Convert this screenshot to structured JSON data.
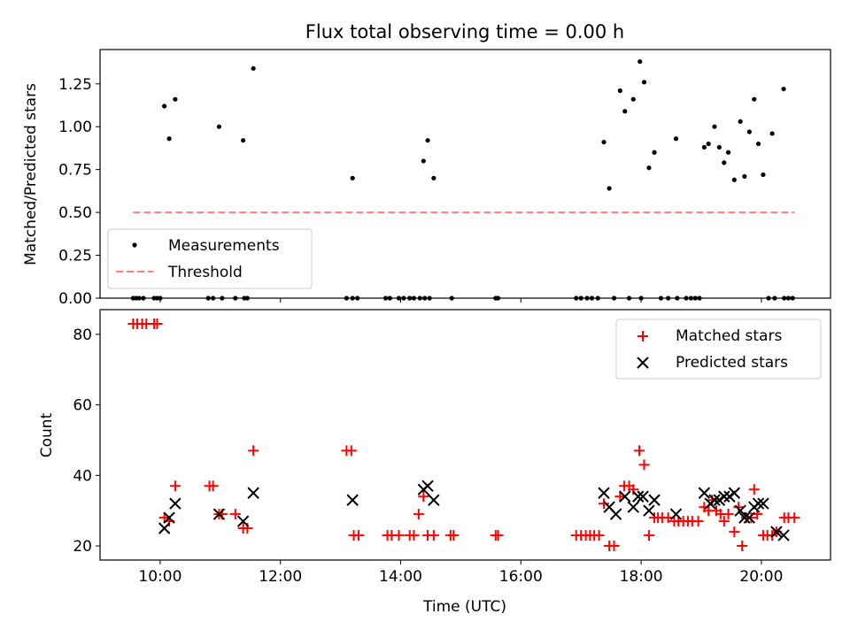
{
  "title": "Flux total observing time = 0.00 h",
  "colors": {
    "measurement": "#000000",
    "threshold": "#ff7f7f",
    "matched": "#ff0000",
    "predicted": "#000000",
    "axis": "#000000"
  },
  "chart_data": [
    {
      "type": "scatter",
      "title": "Flux total observing time = 0.00 h",
      "xlabel": "",
      "ylabel": "Matched/Predicted stars",
      "xlim": [
        9.0,
        21.15
      ],
      "ylim": [
        0.0,
        1.45
      ],
      "xticks": [
        10,
        12,
        14,
        16,
        18,
        20
      ],
      "xtick_labels": [],
      "yticks": [
        0.0,
        0.25,
        0.5,
        0.75,
        1.0,
        1.25
      ],
      "ytick_labels": [
        "0.00",
        "0.25",
        "0.50",
        "0.75",
        "1.00",
        "1.25"
      ],
      "legend_position": "lower-left",
      "series": [
        {
          "name": "Measurements",
          "marker": "dot",
          "x": [
            10.07,
            10.15,
            10.25,
            10.98,
            11.38,
            11.55,
            13.2,
            14.38,
            14.45,
            14.55,
            17.38,
            17.47,
            17.65,
            17.73,
            17.87,
            17.98,
            18.05,
            18.13,
            18.22,
            18.58,
            19.05,
            19.12,
            19.22,
            19.3,
            19.38,
            19.45,
            19.55,
            19.65,
            19.72,
            19.8,
            19.88,
            19.95,
            20.03,
            20.18,
            20.37,
            9.55,
            9.6,
            9.65,
            9.72,
            9.9,
            9.95,
            10.0,
            10.8,
            10.88,
            11.03,
            11.25,
            11.4,
            11.45,
            13.1,
            13.2,
            13.28,
            13.75,
            13.82,
            13.97,
            14.05,
            14.15,
            14.22,
            14.32,
            14.4,
            14.48,
            14.85,
            15.58,
            15.62,
            16.92,
            17.0,
            17.1,
            17.18,
            17.28,
            17.55,
            17.8,
            18.0,
            18.33,
            18.45,
            18.6,
            18.75,
            18.83,
            18.9,
            18.97,
            20.12,
            20.22,
            20.38,
            20.45,
            20.52
          ],
          "y": [
            1.12,
            0.93,
            1.16,
            1.0,
            0.92,
            1.34,
            0.7,
            0.8,
            0.92,
            0.7,
            0.91,
            0.64,
            1.21,
            1.09,
            1.16,
            1.38,
            1.26,
            0.76,
            0.85,
            0.93,
            0.88,
            0.9,
            1.0,
            0.88,
            0.79,
            0.85,
            0.69,
            1.03,
            0.71,
            0.97,
            1.16,
            0.9,
            0.72,
            0.96,
            1.22,
            0.0,
            0.0,
            0.0,
            0.0,
            0.0,
            0.0,
            0.0,
            0.0,
            0.0,
            0.0,
            0.0,
            0.0,
            0.0,
            0.0,
            0.0,
            0.0,
            0.0,
            0.0,
            0.0,
            0.0,
            0.0,
            0.0,
            0.0,
            0.0,
            0.0,
            0.0,
            0.0,
            0.0,
            0.0,
            0.0,
            0.0,
            0.0,
            0.0,
            0.0,
            0.0,
            0.0,
            0.0,
            0.0,
            0.0,
            0.0,
            0.0,
            0.0,
            0.0,
            0.0,
            0.0,
            0.0,
            0.0,
            0.0
          ]
        },
        {
          "name": "Threshold",
          "marker": "dashed-line",
          "x": [
            9.55,
            20.55
          ],
          "y": [
            0.5,
            0.5
          ]
        }
      ]
    },
    {
      "type": "scatter",
      "title": "",
      "xlabel": "Time (UTC)",
      "ylabel": "Count",
      "xlim": [
        9.0,
        21.15
      ],
      "ylim": [
        16.0,
        87.0
      ],
      "xticks": [
        10,
        12,
        14,
        16,
        18,
        20
      ],
      "xtick_labels": [
        "10:00",
        "12:00",
        "14:00",
        "16:00",
        "18:00",
        "20:00"
      ],
      "yticks": [
        20,
        40,
        60,
        80
      ],
      "ytick_labels": [
        "20",
        "40",
        "60",
        "80"
      ],
      "legend_position": "top-right",
      "series": [
        {
          "name": "Matched stars",
          "marker": "plus",
          "x": [
            9.55,
            9.62,
            9.7,
            9.77,
            9.9,
            9.95,
            10.07,
            10.15,
            10.25,
            10.82,
            10.88,
            10.98,
            11.03,
            11.25,
            11.38,
            11.45,
            11.55,
            13.1,
            13.18,
            13.22,
            13.3,
            13.78,
            13.85,
            13.97,
            14.15,
            14.22,
            14.3,
            14.38,
            14.45,
            14.55,
            14.83,
            14.88,
            15.58,
            15.62,
            16.92,
            17.0,
            17.08,
            17.15,
            17.22,
            17.3,
            17.38,
            17.47,
            17.55,
            17.65,
            17.72,
            17.8,
            17.87,
            17.97,
            18.05,
            18.13,
            18.22,
            18.28,
            18.35,
            18.45,
            18.55,
            18.62,
            18.7,
            18.78,
            18.85,
            18.95,
            19.05,
            19.12,
            19.18,
            19.25,
            19.32,
            19.38,
            19.45,
            19.55,
            19.62,
            19.68,
            19.75,
            19.83,
            19.88,
            19.93,
            20.03,
            20.1,
            20.18,
            20.25,
            20.38,
            20.45,
            20.55
          ],
          "y": [
            83,
            83,
            83,
            83,
            83,
            83,
            28,
            27,
            37,
            37,
            37,
            29,
            29,
            29,
            25,
            25,
            47,
            47,
            47,
            23,
            23,
            23,
            23,
            23,
            23,
            23,
            29,
            34,
            23,
            23,
            23,
            23,
            23,
            23,
            23,
            23,
            23,
            23,
            23,
            23,
            32,
            20,
            20,
            34,
            37,
            37,
            36,
            47,
            43,
            23,
            28,
            28,
            28,
            28,
            27,
            27,
            27,
            27,
            27,
            27,
            31,
            30,
            33,
            30,
            29,
            27,
            29,
            24,
            31,
            20,
            28,
            28,
            36,
            29,
            23,
            23,
            23,
            24,
            28,
            28,
            28
          ]
        },
        {
          "name": "Predicted stars",
          "marker": "x",
          "x": [
            10.07,
            10.15,
            10.25,
            10.98,
            11.38,
            11.55,
            13.2,
            14.38,
            14.45,
            14.55,
            17.38,
            17.47,
            17.58,
            17.73,
            17.87,
            17.95,
            18.03,
            18.13,
            18.22,
            18.58,
            19.05,
            19.15,
            19.22,
            19.3,
            19.38,
            19.47,
            19.55,
            19.65,
            19.72,
            19.8,
            19.88,
            19.95,
            20.03,
            20.25,
            20.37
          ],
          "y": [
            25,
            28,
            32,
            29,
            27,
            35,
            33,
            36,
            37,
            33,
            35,
            31,
            29,
            34,
            31,
            34,
            34,
            30,
            33,
            29,
            35,
            32,
            33,
            33,
            34,
            34,
            35,
            30,
            28,
            28,
            31,
            32,
            32,
            24,
            23
          ]
        }
      ]
    }
  ]
}
